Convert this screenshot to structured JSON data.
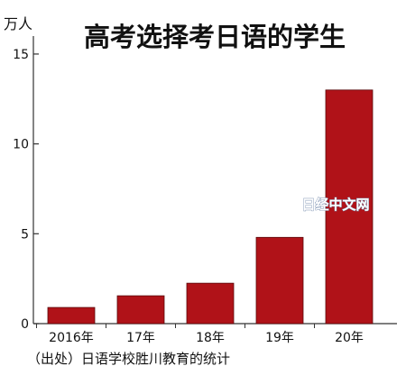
{
  "chart_data": {
    "type": "bar",
    "title": "高考选择考日语的学生",
    "ylabel": "万人",
    "xlabel": "",
    "categories": [
      "2016年",
      "17年",
      "18年",
      "19年",
      "20年"
    ],
    "values": [
      0.9,
      1.55,
      2.25,
      4.8,
      13.0
    ],
    "ylim": [
      0,
      16
    ],
    "yticks": [
      0,
      5,
      10,
      15
    ],
    "grid": false,
    "bar_color": "#b01218",
    "source_note": "（出处）日语学校胜川教育的统计"
  },
  "watermark": "日经中文网"
}
